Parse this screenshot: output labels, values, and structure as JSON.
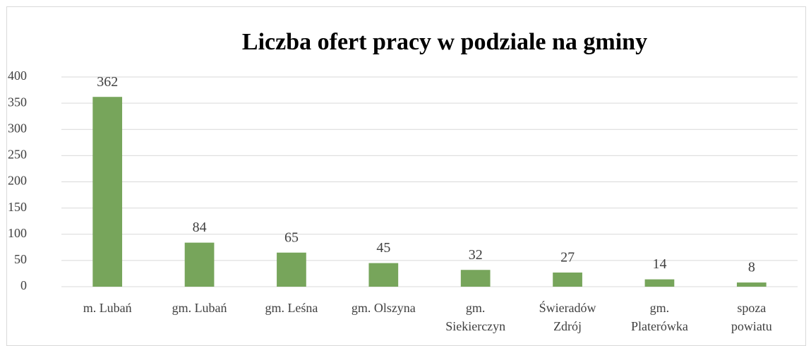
{
  "chart_data": {
    "type": "bar",
    "title": "Liczba ofert pracy w podziale na gminy",
    "categories": [
      "m. Lubań",
      "gm. Lubań",
      "gm. Leśna",
      "gm. Olszyna",
      "gm. Siekierczyn",
      "Świeradów Zdrój",
      "gm. Platerówka",
      "spoza powiatu"
    ],
    "values": [
      362,
      84,
      65,
      45,
      32,
      27,
      14,
      8
    ],
    "color": "#77a55b",
    "ylim": [
      0,
      400
    ],
    "yticks": [
      0,
      50,
      100,
      150,
      200,
      250,
      300,
      350,
      400
    ],
    "grid": true,
    "data_labels": true
  }
}
